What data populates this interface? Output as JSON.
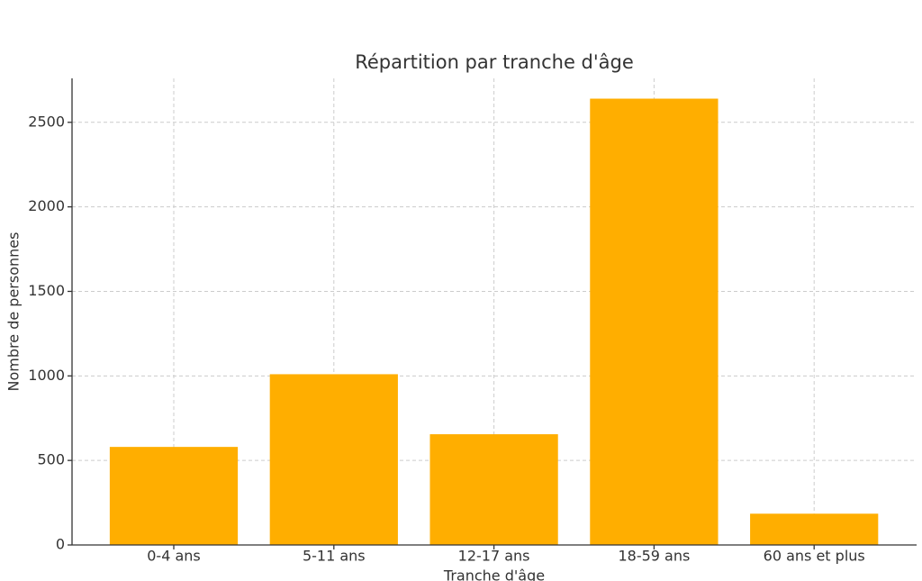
{
  "chart_data": {
    "type": "bar",
    "title": "Répartition par tranche d'âge",
    "x_label": "Tranche d'âge",
    "y_label": "Nombre de personnes",
    "categories": [
      "0-4 ans",
      "5-11 ans",
      "12-17 ans",
      "18-59 ans",
      "60 ans et plus"
    ],
    "values": [
      580,
      1010,
      655,
      2640,
      185
    ],
    "color": "#ffae00",
    "ylim": [
      0,
      2760
    ],
    "yticks": [
      0,
      500,
      1000,
      1500,
      2000,
      2500
    ],
    "grid": true
  }
}
